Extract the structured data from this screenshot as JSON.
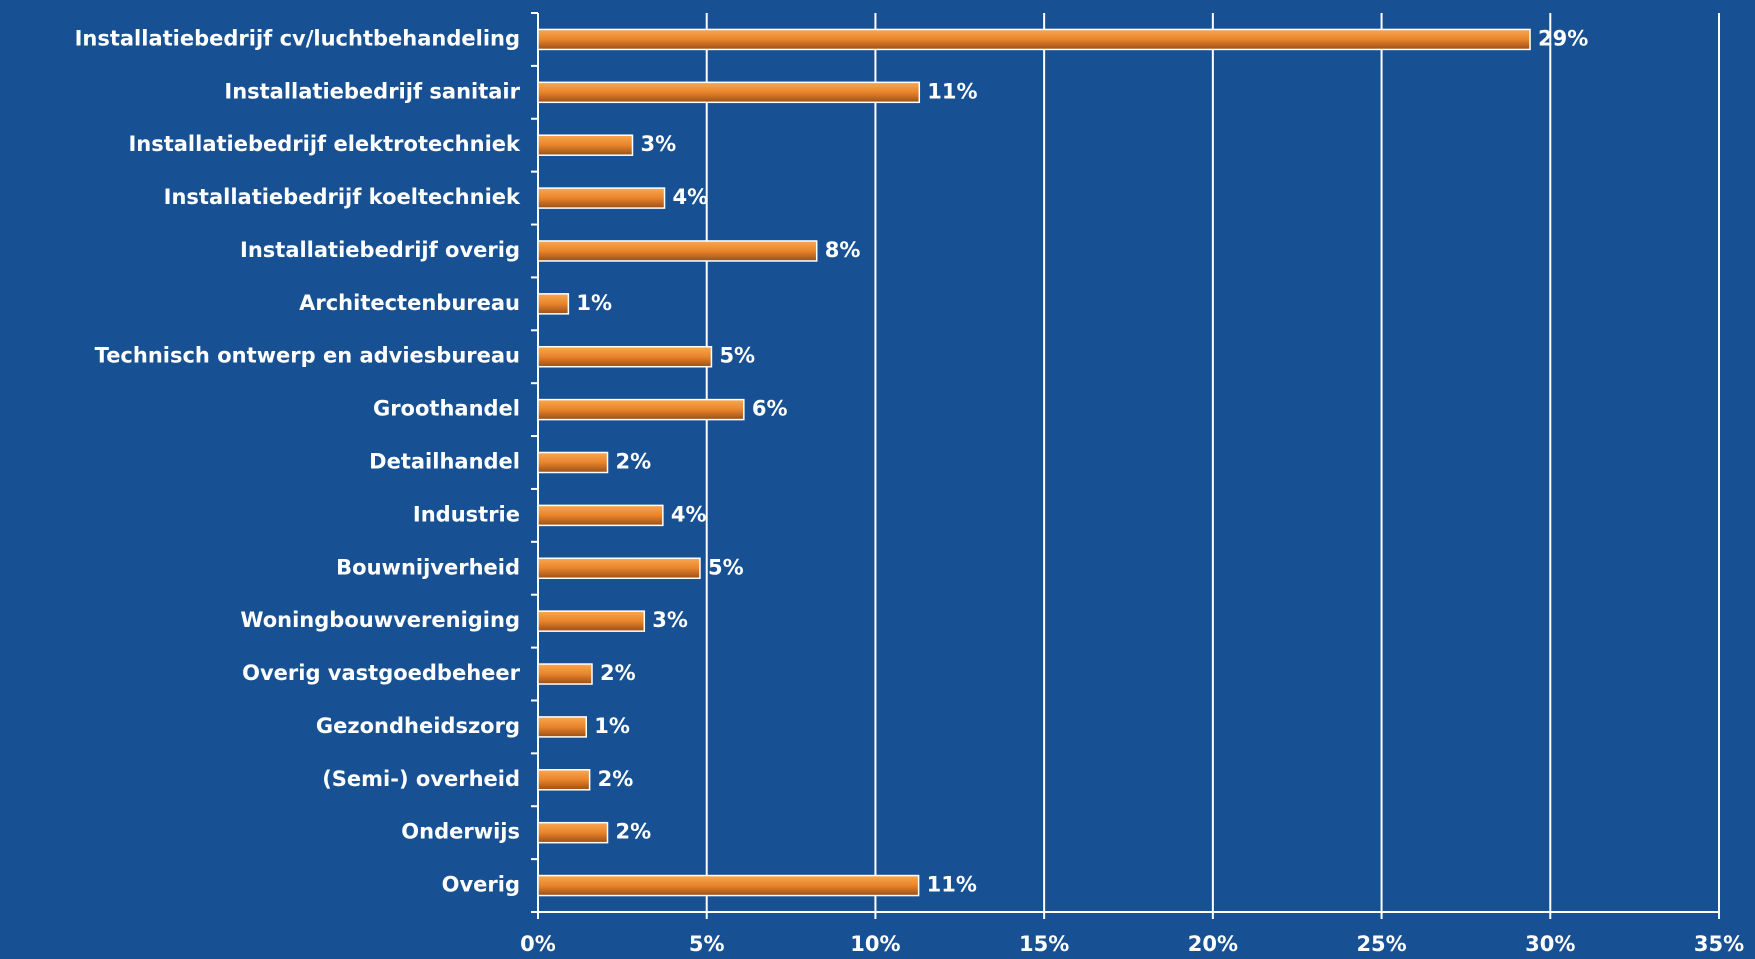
{
  "chart_data": {
    "type": "barh",
    "categories": [
      "Installatiebedrijf cv/luchtbehandeling",
      "Installatiebedrijf sanitair",
      "Installatiebedrijf elektrotechniek",
      "Installatiebedrijf koeltechniek",
      "Installatiebedrijf overig",
      "Architectenbureau",
      "Technisch ontwerp en adviesbureau",
      "Groothandel",
      "Detailhandel",
      "Industrie",
      "Bouwnijverheid",
      "Woningbouwvereniging",
      "Overig vastgoedbeheer",
      "Gezondheidszorg",
      "(Semi-) overheid",
      "Onderwijs",
      "Overig"
    ],
    "values": [
      29.4,
      11.3,
      2.8,
      3.75,
      8.26,
      0.9,
      5.14,
      6.1,
      2.06,
      3.7,
      4.8,
      3.15,
      1.6,
      1.43,
      1.53,
      2.06,
      11.28
    ],
    "value_labels": [
      "29%",
      "11%",
      "3%",
      "4%",
      "8%",
      "1%",
      "5%",
      "6%",
      "2%",
      "4%",
      "5%",
      "3%",
      "2%",
      "1%",
      "2%",
      "2%",
      "11%"
    ],
    "color": "#e8842c",
    "xlim": [
      0,
      35
    ],
    "xticks": [
      {
        "value": 0,
        "label": "0%"
      },
      {
        "value": 5,
        "label": "5%"
      },
      {
        "value": 10,
        "label": "10%"
      },
      {
        "value": 15,
        "label": "15%"
      },
      {
        "value": 20,
        "label": "20%"
      },
      {
        "value": 25,
        "label": "25%"
      },
      {
        "value": 30,
        "label": "30%"
      },
      {
        "value": 35,
        "label": "35%"
      }
    ],
    "grid": true
  }
}
